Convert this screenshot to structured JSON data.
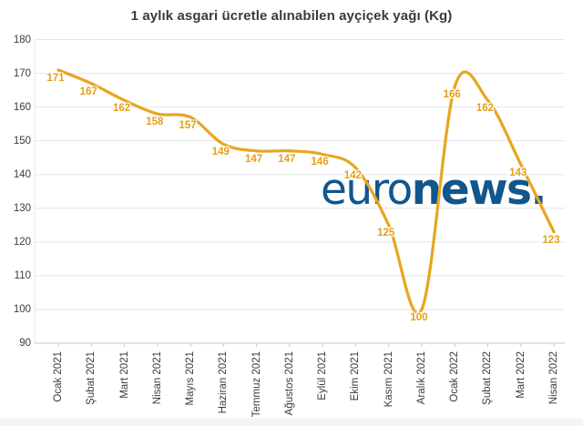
{
  "chart_data": {
    "type": "line",
    "title": "1 aylık asgari ücretle alınabilen ayçiçek yağı (Kg)",
    "categories": [
      "Ocak 2021",
      "Şubat 2021",
      "Mart 2021",
      "Nisan 2021",
      "Mayıs 2021",
      "Haziran 2021",
      "Temmuz 2021",
      "Ağustos 2021",
      "Eylül 2021",
      "Ekim 2021",
      "Kasım 2021",
      "Aralık 2021",
      "Ocak 2022",
      "Şubat 2022",
      "Mart 2022",
      "Nisan 2022"
    ],
    "values": [
      171,
      167,
      162,
      158,
      157,
      149,
      147,
      147,
      146,
      142,
      125,
      100,
      166,
      162,
      143,
      123
    ],
    "xlabel": "",
    "ylabel": "",
    "ylim": [
      90,
      180
    ],
    "yticks": [
      90,
      100,
      110,
      120,
      130,
      140,
      150,
      160,
      170,
      180
    ],
    "grid": "on",
    "legend": "none",
    "x_label_rotation": -90,
    "smooth": true,
    "line_color": "#E9A51F",
    "data_label_color": "#E39F15",
    "grid_color": "#e6e6e6",
    "axis_line_color": "#c9c9c9",
    "tick_label_color": "#3b3b3b"
  },
  "watermark": {
    "euro": "euro",
    "news": "news.",
    "color": "#11568D"
  }
}
